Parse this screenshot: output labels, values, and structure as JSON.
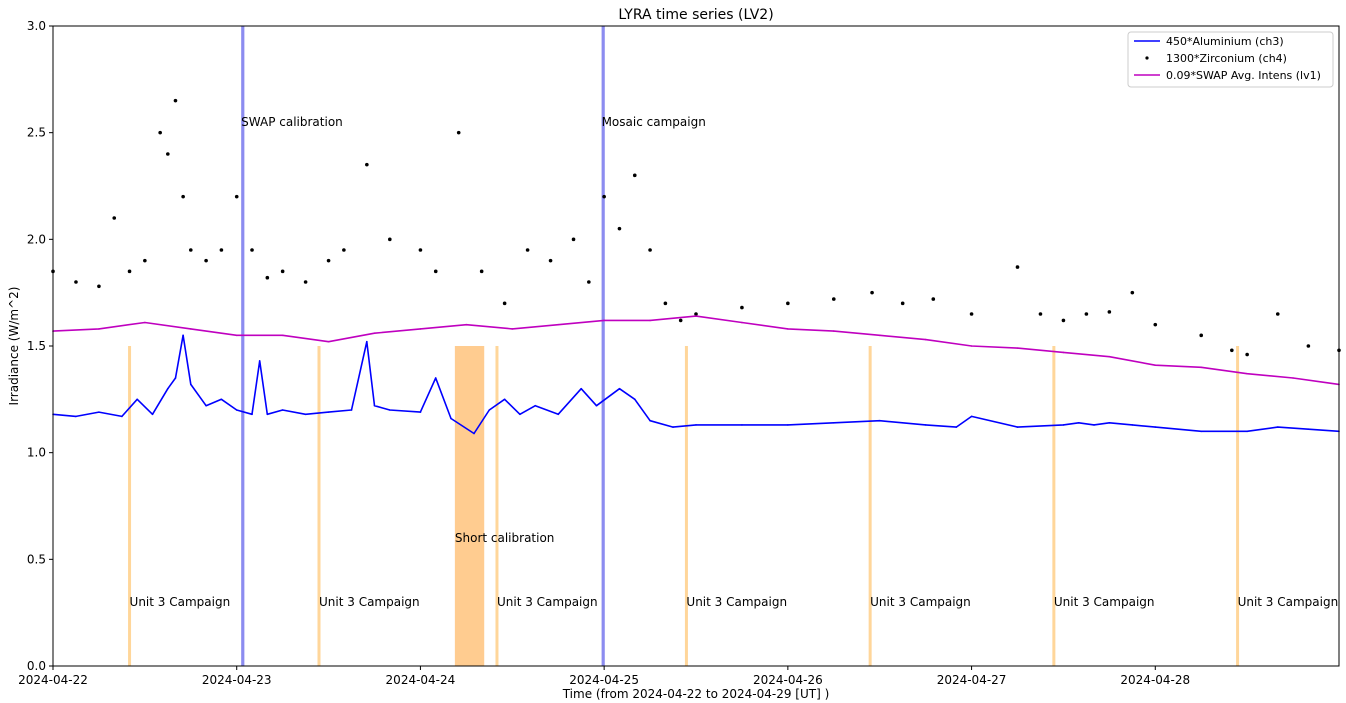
{
  "chart_data": {
    "type": "line",
    "title": "LYRA time series (LV2)",
    "xlabel": "Time (from 2024-04-22 to 2024-04-29 [UT] )",
    "ylabel": "Irradiance (W/m^2)",
    "xlim": [
      "2024-04-22",
      "2024-04-29"
    ],
    "ylim": [
      0.0,
      3.0
    ],
    "x_ticks": [
      "2024-04-22",
      "2024-04-23",
      "2024-04-24",
      "2024-04-25",
      "2024-04-26",
      "2024-04-27",
      "2024-04-28"
    ],
    "y_ticks": [
      "0.0",
      "0.5",
      "1.0",
      "1.5",
      "2.0",
      "2.5",
      "3.0"
    ],
    "legend_position": "top-right",
    "series": [
      {
        "name": "450*Aluminium (ch3)",
        "style": "line",
        "color": "#0000ff",
        "x": [
          "2024-04-22 00:00",
          "2024-04-22 03:00",
          "2024-04-22 06:00",
          "2024-04-22 09:00",
          "2024-04-22 11:00",
          "2024-04-22 13:00",
          "2024-04-22 15:00",
          "2024-04-22 16:00",
          "2024-04-22 17:00",
          "2024-04-22 18:00",
          "2024-04-22 20:00",
          "2024-04-22 22:00",
          "2024-04-23 00:00",
          "2024-04-23 02:00",
          "2024-04-23 03:00",
          "2024-04-23 04:00",
          "2024-04-23 06:00",
          "2024-04-23 09:00",
          "2024-04-23 12:00",
          "2024-04-23 15:00",
          "2024-04-23 17:00",
          "2024-04-23 18:00",
          "2024-04-23 20:00",
          "2024-04-24 00:00",
          "2024-04-24 02:00",
          "2024-04-24 04:00",
          "2024-04-24 07:00",
          "2024-04-24 09:00",
          "2024-04-24 11:00",
          "2024-04-24 13:00",
          "2024-04-24 15:00",
          "2024-04-24 18:00",
          "2024-04-24 21:00",
          "2024-04-24 23:00",
          "2024-04-25 02:00",
          "2024-04-25 04:00",
          "2024-04-25 06:00",
          "2024-04-25 09:00",
          "2024-04-25 12:00",
          "2024-04-25 18:00",
          "2024-04-26 00:00",
          "2024-04-26 06:00",
          "2024-04-26 12:00",
          "2024-04-26 18:00",
          "2024-04-26 22:00",
          "2024-04-27 00:00",
          "2024-04-27 06:00",
          "2024-04-27 12:00",
          "2024-04-27 14:00",
          "2024-04-27 16:00",
          "2024-04-27 18:00",
          "2024-04-27 21:00",
          "2024-04-28 00:00",
          "2024-04-28 06:00",
          "2024-04-28 12:00",
          "2024-04-28 16:00",
          "2024-04-28 20:00",
          "2024-04-29 00:00"
        ],
        "y": [
          1.18,
          1.17,
          1.19,
          1.17,
          1.25,
          1.18,
          1.3,
          1.35,
          1.55,
          1.32,
          1.22,
          1.25,
          1.2,
          1.18,
          1.43,
          1.18,
          1.2,
          1.18,
          1.19,
          1.2,
          1.52,
          1.22,
          1.2,
          1.19,
          1.35,
          1.16,
          1.09,
          1.2,
          1.25,
          1.18,
          1.22,
          1.18,
          1.3,
          1.22,
          1.3,
          1.25,
          1.15,
          1.12,
          1.13,
          1.13,
          1.13,
          1.14,
          1.15,
          1.13,
          1.12,
          1.17,
          1.12,
          1.13,
          1.14,
          1.13,
          1.14,
          1.13,
          1.12,
          1.1,
          1.1,
          1.12,
          1.11,
          1.1
        ]
      },
      {
        "name": "1300*Zirconium (ch4)",
        "style": "dots",
        "color": "#000000",
        "x": [
          "2024-04-22 00:00",
          "2024-04-22 03:00",
          "2024-04-22 06:00",
          "2024-04-22 08:00",
          "2024-04-22 10:00",
          "2024-04-22 12:00",
          "2024-04-22 14:00",
          "2024-04-22 15:00",
          "2024-04-22 16:00",
          "2024-04-22 17:00",
          "2024-04-22 18:00",
          "2024-04-22 20:00",
          "2024-04-22 22:00",
          "2024-04-23 00:00",
          "2024-04-23 02:00",
          "2024-04-23 04:00",
          "2024-04-23 06:00",
          "2024-04-23 09:00",
          "2024-04-23 12:00",
          "2024-04-23 14:00",
          "2024-04-23 17:00",
          "2024-04-23 20:00",
          "2024-04-24 00:00",
          "2024-04-24 02:00",
          "2024-04-24 05:00",
          "2024-04-24 08:00",
          "2024-04-24 11:00",
          "2024-04-24 14:00",
          "2024-04-24 17:00",
          "2024-04-24 20:00",
          "2024-04-24 22:00",
          "2024-04-25 00:00",
          "2024-04-25 02:00",
          "2024-04-25 04:00",
          "2024-04-25 06:00",
          "2024-04-25 08:00",
          "2024-04-25 10:00",
          "2024-04-25 12:00",
          "2024-04-25 18:00",
          "2024-04-26 00:00",
          "2024-04-26 06:00",
          "2024-04-26 11:00",
          "2024-04-26 15:00",
          "2024-04-26 19:00",
          "2024-04-27 00:00",
          "2024-04-27 06:00",
          "2024-04-27 09:00",
          "2024-04-27 12:00",
          "2024-04-27 15:00",
          "2024-04-27 18:00",
          "2024-04-27 21:00",
          "2024-04-28 00:00",
          "2024-04-28 06:00",
          "2024-04-28 10:00",
          "2024-04-28 12:00",
          "2024-04-28 16:00",
          "2024-04-28 20:00",
          "2024-04-29 00:00"
        ],
        "y": [
          1.85,
          1.8,
          1.78,
          2.1,
          1.85,
          1.9,
          2.5,
          2.4,
          2.65,
          2.2,
          1.95,
          1.9,
          1.95,
          2.2,
          1.95,
          1.82,
          1.85,
          1.8,
          1.9,
          1.95,
          2.35,
          2.0,
          1.95,
          1.85,
          2.5,
          1.85,
          1.7,
          1.95,
          1.9,
          2.0,
          1.8,
          2.2,
          2.05,
          2.3,
          1.95,
          1.7,
          1.62,
          1.65,
          1.68,
          1.7,
          1.72,
          1.75,
          1.7,
          1.72,
          1.65,
          1.87,
          1.65,
          1.62,
          1.65,
          1.66,
          1.75,
          1.6,
          1.55,
          1.48,
          1.46,
          1.65,
          1.5,
          1.48
        ]
      },
      {
        "name": "0.09*SWAP Avg. Intens (lv1)",
        "style": "line",
        "color": "#bf00bf",
        "x": [
          "2024-04-22 00:00",
          "2024-04-22 06:00",
          "2024-04-22 12:00",
          "2024-04-22 18:00",
          "2024-04-23 00:00",
          "2024-04-23 06:00",
          "2024-04-23 12:00",
          "2024-04-23 18:00",
          "2024-04-24 00:00",
          "2024-04-24 06:00",
          "2024-04-24 12:00",
          "2024-04-24 18:00",
          "2024-04-25 00:00",
          "2024-04-25 06:00",
          "2024-04-25 12:00",
          "2024-04-25 18:00",
          "2024-04-26 00:00",
          "2024-04-26 06:00",
          "2024-04-26 12:00",
          "2024-04-26 18:00",
          "2024-04-27 00:00",
          "2024-04-27 06:00",
          "2024-04-27 12:00",
          "2024-04-27 18:00",
          "2024-04-28 00:00",
          "2024-04-28 06:00",
          "2024-04-28 12:00",
          "2024-04-28 18:00",
          "2024-04-29 00:00"
        ],
        "y": [
          1.57,
          1.58,
          1.61,
          1.58,
          1.55,
          1.55,
          1.52,
          1.56,
          1.58,
          1.6,
          1.58,
          1.6,
          1.62,
          1.62,
          1.64,
          1.61,
          1.58,
          1.57,
          1.55,
          1.53,
          1.5,
          1.49,
          1.47,
          1.45,
          1.41,
          1.4,
          1.37,
          1.35,
          1.32
        ]
      }
    ],
    "annotations": [
      {
        "label": "SWAP calibration",
        "type": "band",
        "color": "#8c8cf0",
        "x0": "2024-04-23 00:35",
        "x1": "2024-04-23 01:00",
        "y0": 0.0,
        "y1": 3.0,
        "label_y": 2.55
      },
      {
        "label": "Mosaic campaign",
        "type": "band",
        "color": "#8c8cf0",
        "x0": "2024-04-24 23:40",
        "x1": "2024-04-25 00:05",
        "y0": 0.0,
        "y1": 3.0,
        "label_y": 2.55
      },
      {
        "label": "Short calibration",
        "type": "band",
        "color": "#ffcc90",
        "x0": "2024-04-24 04:30",
        "x1": "2024-04-24 08:20",
        "y0": 0.0,
        "y1": 1.5,
        "label_y": 0.6
      },
      {
        "label": "Unit 3 Campaign",
        "type": "line",
        "color": "#ffd69a",
        "x": "2024-04-22 10:00",
        "y0": 0.0,
        "y1": 1.5,
        "label_y": 0.3
      },
      {
        "label": "Unit 3 Campaign",
        "type": "line",
        "color": "#ffd69a",
        "x": "2024-04-23 10:45",
        "y0": 0.0,
        "y1": 1.5,
        "label_y": 0.3
      },
      {
        "label": "Unit 3 Campaign",
        "type": "line",
        "color": "#ffd69a",
        "x": "2024-04-24 10:00",
        "y0": 0.0,
        "y1": 1.5,
        "label_y": 0.3
      },
      {
        "label": "Unit 3 Campaign",
        "type": "line",
        "color": "#ffd69a",
        "x": "2024-04-25 10:45",
        "y0": 0.0,
        "y1": 1.5,
        "label_y": 0.3
      },
      {
        "label": "Unit 3 Campaign",
        "type": "line",
        "color": "#ffd69a",
        "x": "2024-04-26 10:45",
        "y0": 0.0,
        "y1": 1.5,
        "label_y": 0.3
      },
      {
        "label": "Unit 3 Campaign",
        "type": "line",
        "color": "#ffd69a",
        "x": "2024-04-27 10:45",
        "y0": 0.0,
        "y1": 1.5,
        "label_y": 0.3
      },
      {
        "label": "Unit 3 Campaign",
        "type": "line",
        "color": "#ffd69a",
        "x": "2024-04-28 10:45",
        "y0": 0.0,
        "y1": 1.5,
        "label_y": 0.3
      }
    ]
  }
}
